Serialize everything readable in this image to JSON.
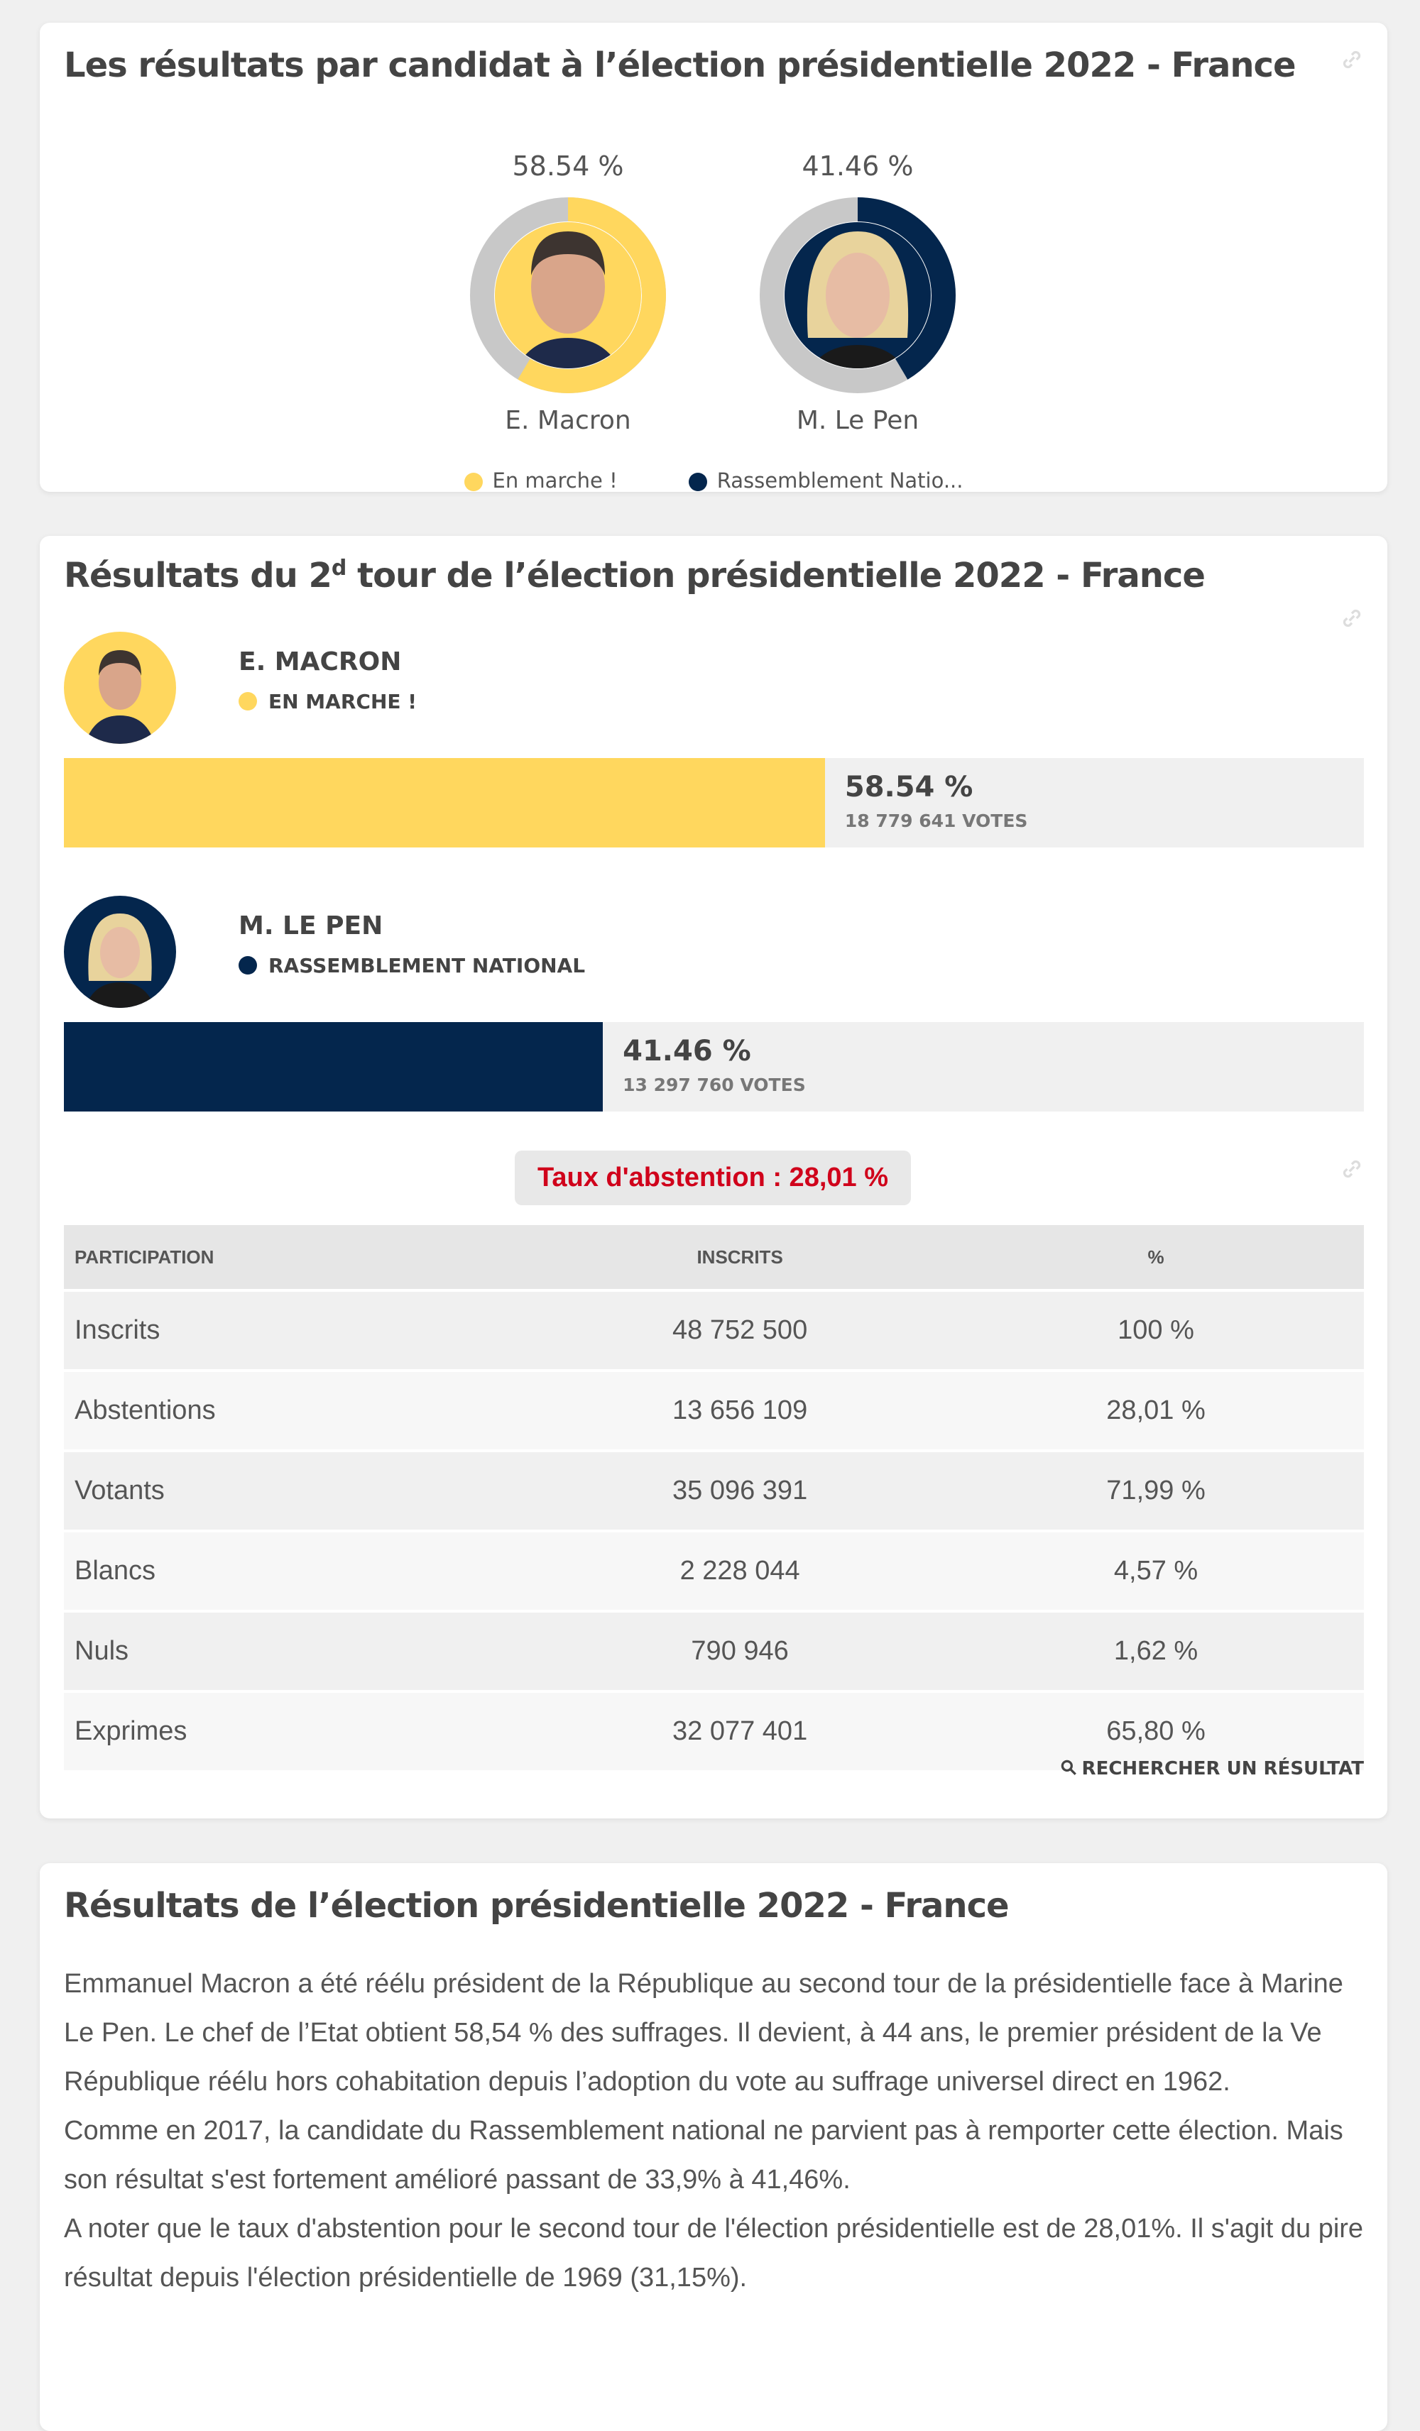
{
  "card1": {
    "title": "Les résultats par candidat à l’élection présidentielle 2022 - France",
    "candidates": [
      {
        "name": "E. Macron",
        "percent_label": "58.54 %",
        "percent": 58.54,
        "color": "#ffd75e"
      },
      {
        "name": "M. Le Pen",
        "percent_label": "41.46 %",
        "percent": 41.46,
        "color": "#04264d"
      }
    ],
    "legend": [
      {
        "label": "En marche !",
        "color": "#ffd75e"
      },
      {
        "label": "Rassemblement Natio...",
        "color": "#04264d"
      }
    ]
  },
  "card2": {
    "title_prefix": "Résultats du 2",
    "title_sup": "d",
    "title_suffix": " tour de l’élection présidentielle 2022 - France",
    "candidates": [
      {
        "name": "E. MACRON",
        "party": "EN MARCHE !",
        "percent_label": "58.54 %",
        "percent": 58.54,
        "votes": "18 779 641 VOTES",
        "color": "#ffd75e"
      },
      {
        "name": "M. LE PEN",
        "party": "RASSEMBLEMENT NATIONAL",
        "percent_label": "41.46 %",
        "percent": 41.46,
        "votes": "13 297 760 VOTES",
        "color": "#04264d"
      }
    ],
    "abstention": "Taux d'abstention : 28,01 %",
    "table": {
      "headers": [
        "PARTICIPATION",
        "INSCRITS",
        "%"
      ],
      "rows": [
        [
          "Inscrits",
          "48 752 500",
          "100 %"
        ],
        [
          "Abstentions",
          "13 656 109",
          "28,01 %"
        ],
        [
          "Votants",
          "35 096 391",
          "71,99 %"
        ],
        [
          "Blancs",
          "2 228 044",
          "4,57 %"
        ],
        [
          "Nuls",
          "790 946",
          "1,62 %"
        ],
        [
          "Exprimes",
          "32 077 401",
          "65,80 %"
        ]
      ]
    },
    "search_link": "RECHERCHER UN RÉSULTAT"
  },
  "card3": {
    "title": "Résultats de l’élection présidentielle 2022 - France",
    "paragraphs": [
      "Emmanuel Macron a été réélu président de la République au second tour de la présidentielle face à Marine Le Pen. Le chef de l’Etat obtient 58,54 % des suffrages. Il devient, à 44 ans, le premier président de la Ve République réélu hors cohabitation depuis l’adoption du vote au suffrage universel direct en 1962.",
      "Comme en 2017, la candidate du Rassemblement national ne parvient pas à remporter cette élection. Mais son résultat s'est fortement amélioré passant de 33,9% à 41,46%.",
      "A noter que le taux d'abstention pour le second tour de l'élection présidentielle est de 28,01%. Il s'agit du pire résultat depuis l'élection présidentielle de 1969 (31,15%)."
    ]
  }
}
